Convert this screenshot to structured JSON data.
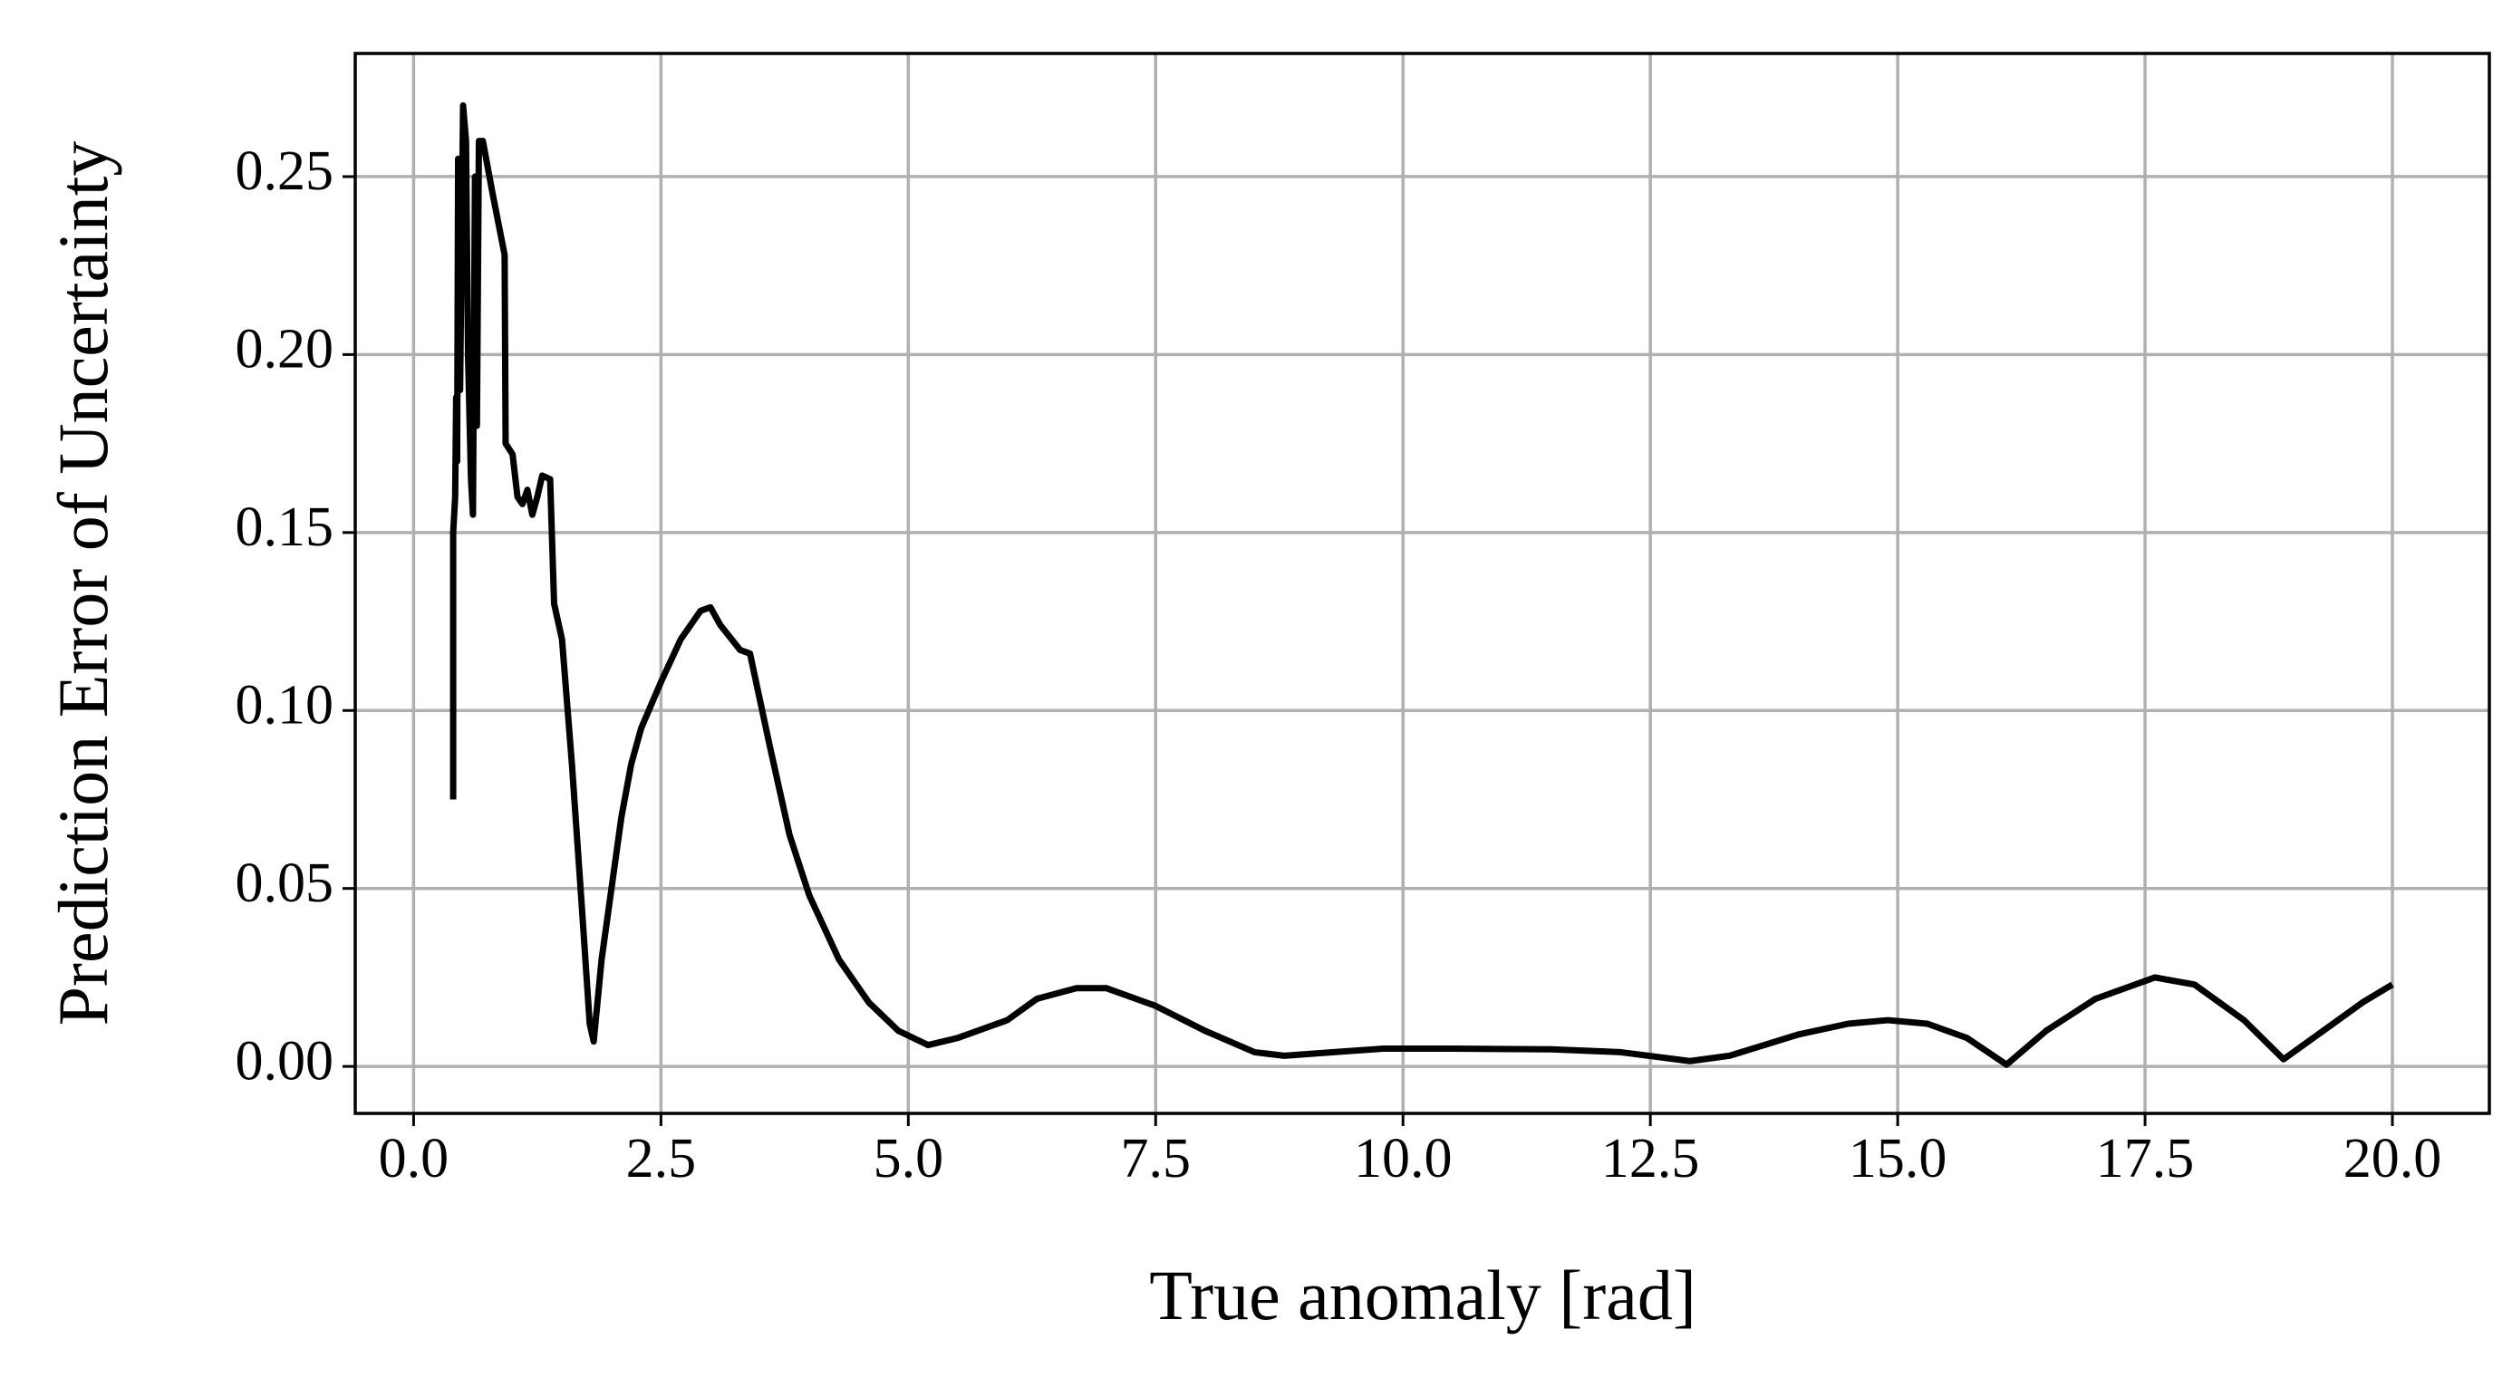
{
  "chart_data": {
    "type": "line",
    "x_label": "True anomaly [rad]",
    "y_label": "Prediction Error of Uncertainty",
    "xlim": [
      -0.59,
      20.98
    ],
    "ylim": [
      -0.0132,
      0.2846
    ],
    "xticks": [
      {
        "value": 0,
        "label": "0.0"
      },
      {
        "value": 2.5,
        "label": "2.5"
      },
      {
        "value": 5,
        "label": "5.0"
      },
      {
        "value": 7.5,
        "label": "7.5"
      },
      {
        "value": 10,
        "label": "10.0"
      },
      {
        "value": 12.5,
        "label": "12.5"
      },
      {
        "value": 15,
        "label": "15.0"
      },
      {
        "value": 17.5,
        "label": "17.5"
      },
      {
        "value": 20,
        "label": "20.0"
      }
    ],
    "yticks": [
      {
        "value": 0,
        "label": "0.00"
      },
      {
        "value": 0.05,
        "label": "0.05"
      },
      {
        "value": 0.1,
        "label": "0.10"
      },
      {
        "value": 0.15,
        "label": "0.15"
      },
      {
        "value": 0.2,
        "label": "0.20"
      },
      {
        "value": 0.25,
        "label": "0.25"
      }
    ],
    "grid": true,
    "x": [
      0.4,
      0.4,
      0.42,
      0.43,
      0.44,
      0.45,
      0.47,
      0.5,
      0.53,
      0.55,
      0.58,
      0.6,
      0.62,
      0.64,
      0.66,
      0.7,
      0.8,
      0.92,
      0.93,
      1.0,
      1.05,
      1.1,
      1.15,
      1.2,
      1.25,
      1.3,
      1.38,
      1.42,
      1.5,
      1.6,
      1.7,
      1.78,
      1.82,
      1.9,
      2.0,
      2.1,
      2.2,
      2.3,
      2.5,
      2.7,
      2.9,
      3.0,
      3.1,
      3.3,
      3.4,
      3.6,
      3.8,
      4.0,
      4.3,
      4.6,
      4.9,
      5.2,
      5.5,
      6.0,
      6.3,
      6.7,
      7.0,
      7.5,
      8.0,
      8.5,
      8.8,
      9.3,
      9.8,
      10.5,
      11.5,
      12.2,
      12.9,
      13.3,
      14.0,
      14.5,
      14.9,
      15.3,
      15.7,
      16.1,
      16.5,
      17.0,
      17.6,
      18.0,
      18.5,
      18.9,
      19.3,
      19.7,
      20.0
    ],
    "series": [
      {
        "color": "#000000",
        "values": [
          0.075,
          0.15,
          0.16,
          0.188,
          0.17,
          0.255,
          0.19,
          0.27,
          0.26,
          0.2,
          0.165,
          0.155,
          0.25,
          0.18,
          0.26,
          0.26,
          0.245,
          0.228,
          0.175,
          0.172,
          0.16,
          0.158,
          0.162,
          0.155,
          0.16,
          0.166,
          0.165,
          0.13,
          0.12,
          0.085,
          0.045,
          0.012,
          0.007,
          0.03,
          0.05,
          0.07,
          0.085,
          0.095,
          0.108,
          0.12,
          0.128,
          0.129,
          0.124,
          0.117,
          0.116,
          0.09,
          0.065,
          0.048,
          0.03,
          0.018,
          0.01,
          0.006,
          0.008,
          0.013,
          0.019,
          0.022,
          0.022,
          0.017,
          0.01,
          0.004,
          0.003,
          0.004,
          0.005,
          0.005,
          0.0048,
          0.004,
          0.0015,
          0.003,
          0.009,
          0.012,
          0.013,
          0.012,
          0.008,
          0.0005,
          0.01,
          0.019,
          0.025,
          0.023,
          0.013,
          0.002,
          0.01,
          0.018,
          0.023
        ]
      }
    ]
  }
}
